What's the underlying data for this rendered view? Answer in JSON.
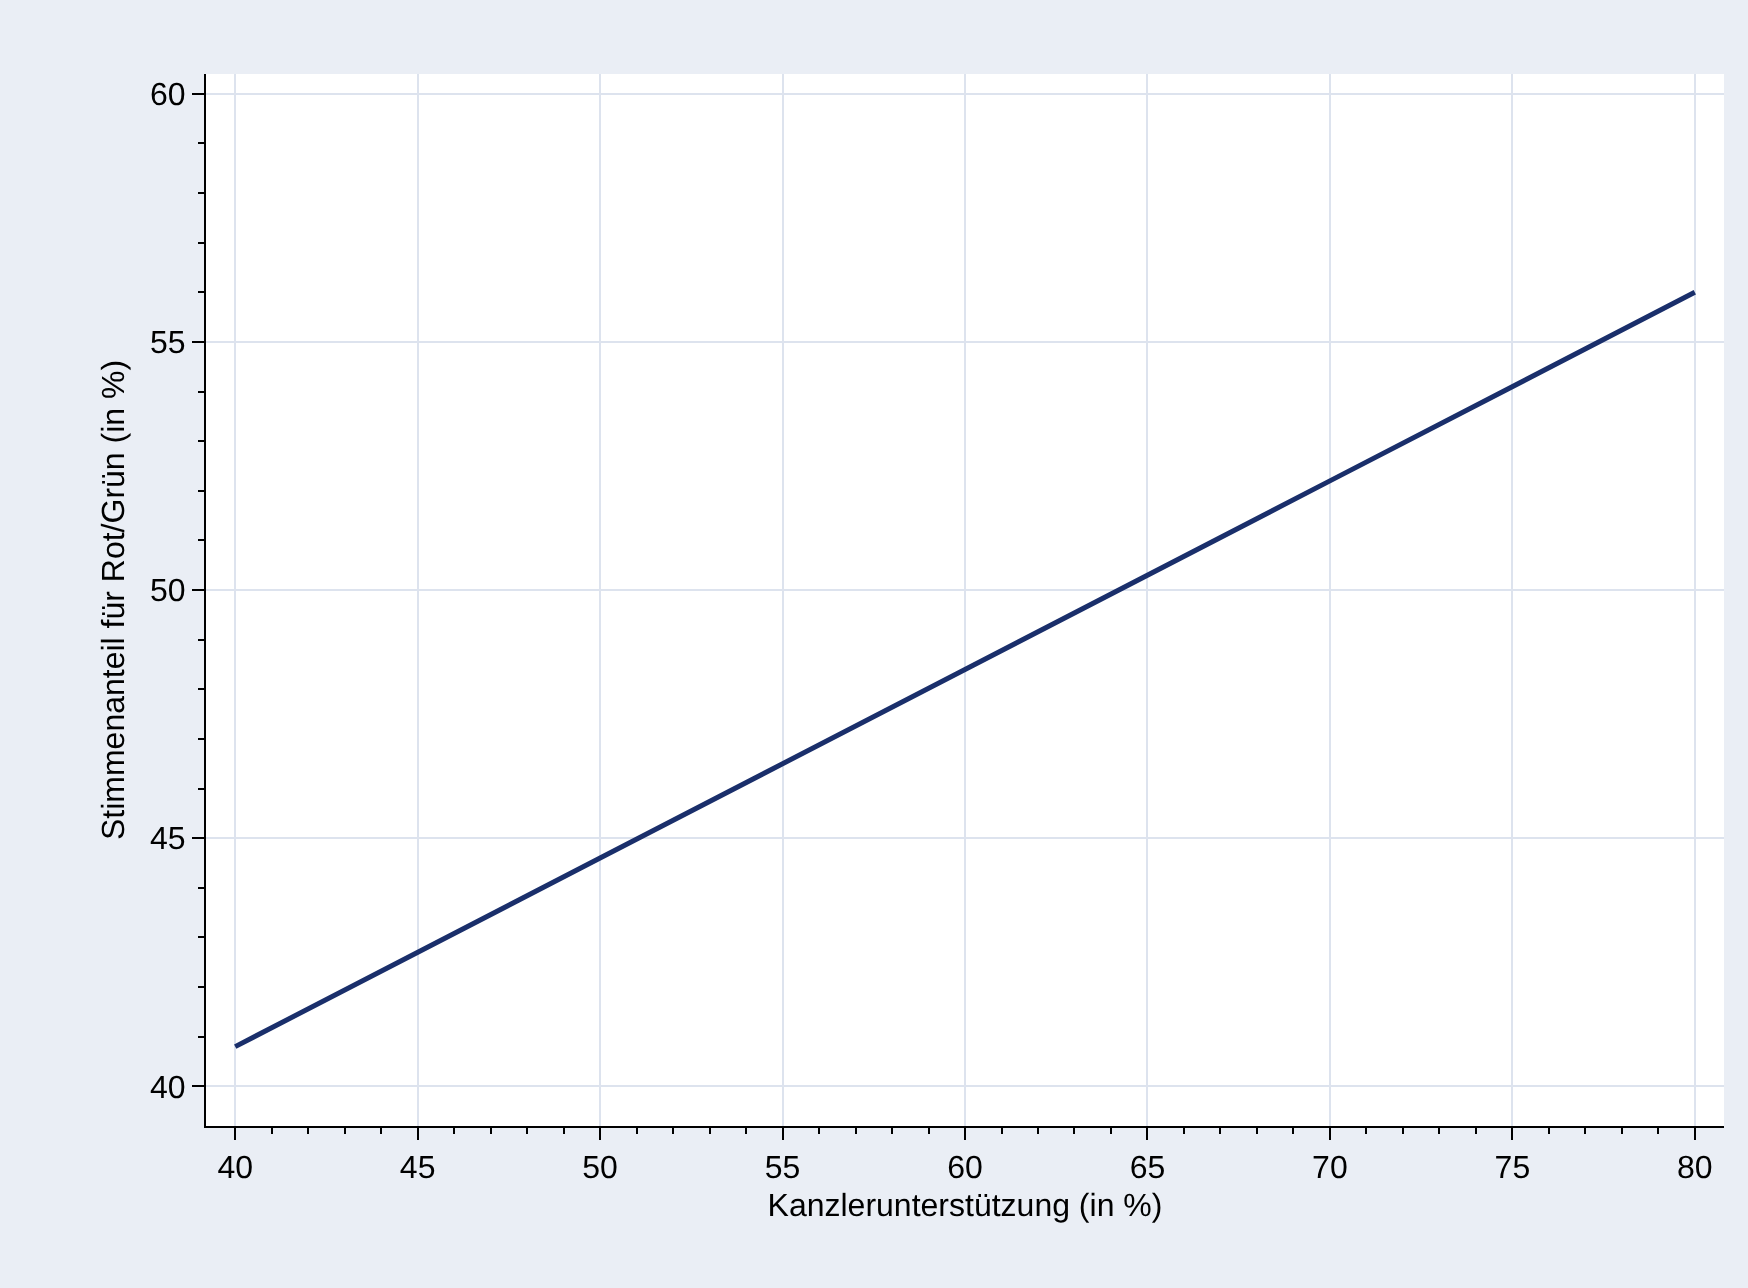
{
  "chart_data": {
    "type": "line",
    "xlabel": "Kanzlerunterstützung (in %)",
    "ylabel": "Stimmenanteil für Rot/Grün (in %)",
    "x": [
      40,
      50,
      60,
      70,
      80
    ],
    "series": [
      {
        "color": "#1a2f6b",
        "values": [
          40.8,
          44.6,
          48.4,
          52.2,
          56.0
        ]
      }
    ],
    "xlim": [
      39.2,
      80.8
    ],
    "ylim": [
      39.2,
      60.4
    ],
    "xticks": [
      40,
      {
        "value": 41,
        "label": null
      },
      {
        "value": 42,
        "label": null
      },
      {
        "value": 43,
        "label": null
      },
      {
        "value": 44,
        "label": null
      },
      45,
      {
        "value": 46,
        "label": null
      },
      {
        "value": 47,
        "label": null
      },
      {
        "value": 48,
        "label": null
      },
      {
        "value": 49,
        "label": null
      },
      50,
      {
        "value": 51,
        "label": null
      },
      {
        "value": 52,
        "label": null
      },
      {
        "value": 53,
        "label": null
      },
      {
        "value": 54,
        "label": null
      },
      55,
      {
        "value": 56,
        "label": null
      },
      {
        "value": 57,
        "label": null
      },
      {
        "value": 58,
        "label": null
      },
      {
        "value": 59,
        "label": null
      },
      60,
      {
        "value": 61,
        "label": null
      },
      {
        "value": 62,
        "label": null
      },
      {
        "value": 63,
        "label": null
      },
      {
        "value": 64,
        "label": null
      },
      65,
      {
        "value": 66,
        "label": null
      },
      {
        "value": 67,
        "label": null
      },
      {
        "value": 68,
        "label": null
      },
      {
        "value": 69,
        "label": null
      },
      70,
      {
        "value": 71,
        "label": null
      },
      {
        "value": 72,
        "label": null
      },
      {
        "value": 73,
        "label": null
      },
      {
        "value": 74,
        "label": null
      },
      75,
      {
        "value": 76,
        "label": null
      },
      {
        "value": 77,
        "label": null
      },
      {
        "value": 78,
        "label": null
      },
      {
        "value": 79,
        "label": null
      },
      80
    ],
    "yticks": [
      40,
      {
        "value": 41,
        "label": null
      },
      {
        "value": 42,
        "label": null
      },
      {
        "value": 43,
        "label": null
      },
      {
        "value": 44,
        "label": null
      },
      45,
      {
        "value": 46,
        "label": null
      },
      {
        "value": 47,
        "label": null
      },
      {
        "value": 48,
        "label": null
      },
      {
        "value": 49,
        "label": null
      },
      50,
      {
        "value": 51,
        "label": null
      },
      {
        "value": 52,
        "label": null
      },
      {
        "value": 53,
        "label": null
      },
      {
        "value": 54,
        "label": null
      },
      55,
      {
        "value": 56,
        "label": null
      },
      {
        "value": 57,
        "label": null
      },
      {
        "value": 58,
        "label": null
      },
      {
        "value": 59,
        "label": null
      },
      60
    ],
    "grid": true,
    "marker": "none",
    "line_style": "solid"
  }
}
